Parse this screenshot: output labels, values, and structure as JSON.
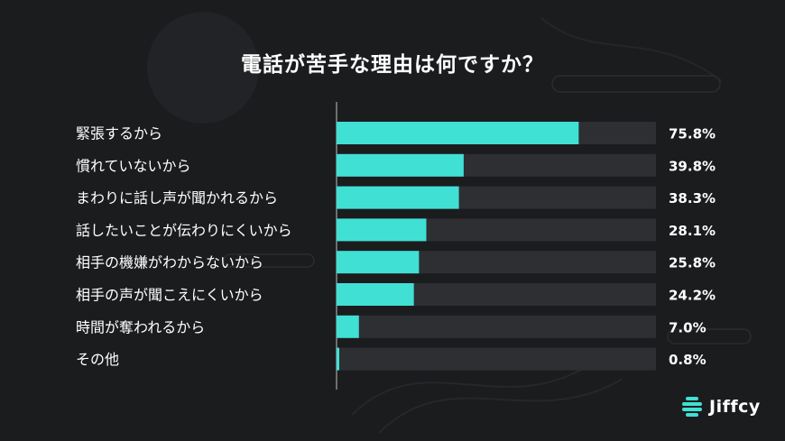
{
  "title": "電話が苦手な理由は何ですか？",
  "brand": {
    "name": "Jiffcy",
    "logo_icon": "jiffcy-logo-icon",
    "accent": "#40e0d4"
  },
  "colors": {
    "bar_fill": "#40e0d4",
    "bar_track": "#2e2f33",
    "background": "#1b1c1e",
    "axis": "#bfbfbf"
  },
  "chart_data": {
    "type": "bar",
    "orientation": "horizontal",
    "categories": [
      "緊張するから",
      "慣れていないから",
      "まわりに話し声が聞かれるから",
      "話したいことが伝わりにくいから",
      "相手の機嫌がわからないから",
      "相手の声が聞こえにくいから",
      "時間が奪われるから",
      "その他"
    ],
    "values": [
      75.8,
      39.8,
      38.3,
      28.1,
      25.8,
      24.2,
      7.0,
      0.8
    ],
    "value_labels": [
      "75.8%",
      "39.8%",
      "38.3%",
      "28.1%",
      "25.8%",
      "24.2%",
      "7.0%",
      "0.8%"
    ],
    "title": "電話が苦手な理由は何ですか？",
    "xlabel": "",
    "ylabel": "",
    "xlim": [
      0,
      100
    ],
    "unit": "%",
    "grid": false,
    "legend": "none"
  }
}
